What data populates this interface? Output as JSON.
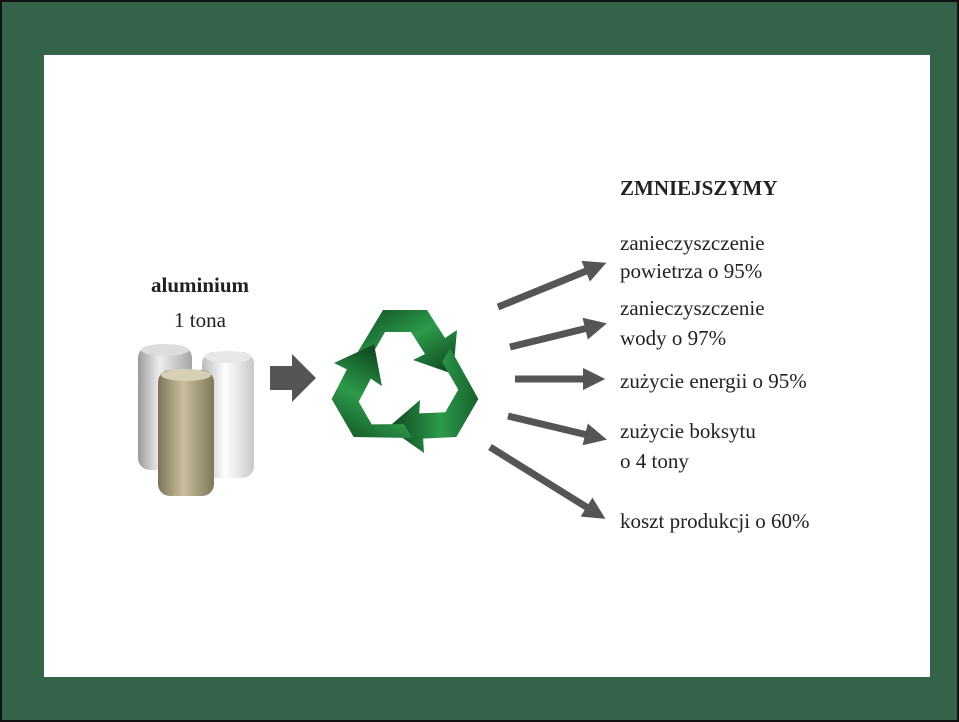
{
  "source": {
    "material": "aluminium",
    "amount": "1 tona"
  },
  "heading": "ZMNIEJSZYMY",
  "effects": [
    {
      "lines": [
        "zanieczyszczenie",
        "powietrza o 95%"
      ]
    },
    {
      "lines": [
        "zanieczyszczenie",
        "wody o 97%"
      ]
    },
    {
      "lines": [
        "zużycie energii o 95%"
      ]
    },
    {
      "lines": [
        "zużycie boksytu",
        "o 4 tony"
      ]
    },
    {
      "lines": [
        "koszt produkcji o 60%"
      ]
    }
  ]
}
